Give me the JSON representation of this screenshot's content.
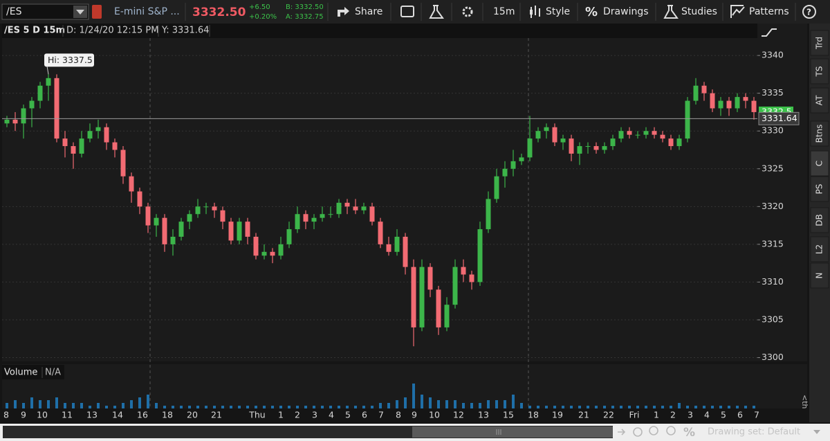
{
  "toolbar": {
    "symbol": "/ES",
    "description": "E-mini S&P ...",
    "last": "3332.50",
    "change": "+6.50",
    "change_pct": "+0.20%",
    "bid": "B: 3332.50",
    "ask": "A: 3332.75",
    "buttons": {
      "share": "Share",
      "interval": "15m",
      "style": "Style",
      "drawings": "Drawings",
      "studies": "Studies",
      "patterns": "Patterns"
    }
  },
  "header": {
    "symbol_label": "/ES 5 D 15m",
    "date": "D: 1/24/20 12:15 PM",
    "y": "Y: 3331.64"
  },
  "chart_data": {
    "type": "candlestick",
    "up_color": "#3cb54a",
    "down_color": "#f26b73",
    "ylim": [
      3299.5,
      3342.3
    ],
    "yticks": [
      3300,
      3305,
      3310,
      3315,
      3320,
      3325,
      3330,
      3335,
      3340
    ],
    "grid": true,
    "hi_label": "Hi: 3337.5",
    "crosshair": 3331.64,
    "last_price": 3332.5,
    "x_labels": [
      "8",
      "9",
      "10",
      "11",
      "13",
      "14",
      "16",
      "18",
      "20",
      "21",
      "Thu",
      "1",
      "2",
      "3",
      "4",
      "5",
      "6",
      "7",
      "8",
      "9",
      "10",
      "12",
      "13",
      "15",
      "18",
      "19",
      "21",
      "22",
      "Fri",
      "1",
      "2",
      "3",
      "4",
      "5",
      "6",
      "7"
    ],
    "candles": [
      [
        3331,
        3332,
        3330.5,
        3331.5
      ],
      [
        3331.5,
        3332.5,
        3330,
        3331
      ],
      [
        3331,
        3333.5,
        3329,
        3333
      ],
      [
        3333,
        3334.5,
        3330.5,
        3334
      ],
      [
        3334,
        3336.5,
        3333,
        3336
      ],
      [
        3336,
        3337.5,
        3334,
        3337
      ],
      [
        3337,
        3337.5,
        3328.5,
        3329
      ],
      [
        3329,
        3330,
        3326.5,
        3328
      ],
      [
        3328,
        3328.5,
        3325,
        3327
      ],
      [
        3327,
        3330,
        3326.5,
        3329
      ],
      [
        3329,
        3331,
        3328.5,
        3330
      ],
      [
        3330,
        3331.5,
        3329,
        3330.5
      ],
      [
        3330.5,
        3331,
        3327.5,
        3328.5
      ],
      [
        3328.5,
        3329,
        3326.5,
        3327.5
      ],
      [
        3327.5,
        3328,
        3323,
        3324
      ],
      [
        3324,
        3324.5,
        3320.5,
        3322
      ],
      [
        3322,
        3322.5,
        3319,
        3320
      ],
      [
        3320,
        3320.5,
        3316.5,
        3317.5
      ],
      [
        3317.5,
        3319,
        3316,
        3318.5
      ],
      [
        3318.5,
        3319,
        3314,
        3315
      ],
      [
        3315,
        3317,
        3313.5,
        3316
      ],
      [
        3316,
        3318.5,
        3315.5,
        3318
      ],
      [
        3318,
        3319.5,
        3317,
        3319
      ],
      [
        3319,
        3321,
        3318.5,
        3320
      ],
      [
        3320,
        3320.5,
        3319,
        3320
      ],
      [
        3320,
        3320.5,
        3318.5,
        3319.5
      ],
      [
        3319.5,
        3320,
        3317,
        3318
      ],
      [
        3318,
        3318.5,
        3315,
        3315.5
      ],
      [
        3315.5,
        3318.5,
        3315,
        3318
      ],
      [
        3318,
        3318.5,
        3315,
        3316
      ],
      [
        3316,
        3316.5,
        3313,
        3313.5
      ],
      [
        3313.5,
        3315,
        3313,
        3314
      ],
      [
        3314,
        3314.5,
        3312.5,
        3313.5
      ],
      [
        3313.5,
        3316,
        3313,
        3315
      ],
      [
        3315,
        3318,
        3314.5,
        3317
      ],
      [
        3317,
        3320,
        3316.5,
        3319
      ],
      [
        3319,
        3319.5,
        3317,
        3318
      ],
      [
        3318,
        3319,
        3317,
        3318.5
      ],
      [
        3318.5,
        3320,
        3318,
        3319
      ],
      [
        3319,
        3320,
        3318.5,
        3319
      ],
      [
        3319,
        3321,
        3318.5,
        3320.5
      ],
      [
        3320.5,
        3321,
        3319,
        3320
      ],
      [
        3320,
        3321,
        3319,
        3319.5
      ],
      [
        3319.5,
        3320.5,
        3319,
        3320
      ],
      [
        3320,
        3320.5,
        3317.5,
        3318
      ],
      [
        3318,
        3318.5,
        3314.5,
        3315
      ],
      [
        3315,
        3316,
        3313.5,
        3314
      ],
      [
        3314,
        3317,
        3313.5,
        3316
      ],
      [
        3316,
        3316.5,
        3311,
        3312
      ],
      [
        3312,
        3313,
        3301.5,
        3304
      ],
      [
        3304,
        3313,
        3303.5,
        3312
      ],
      [
        3312,
        3312.5,
        3308,
        3309
      ],
      [
        3309,
        3309.5,
        3303,
        3304
      ],
      [
        3304,
        3308,
        3303.5,
        3307
      ],
      [
        3307,
        3313,
        3306.5,
        3312
      ],
      [
        3312,
        3313,
        3310,
        3311
      ],
      [
        3311,
        3311.5,
        3309,
        3310
      ],
      [
        3310,
        3318,
        3309.5,
        3317
      ],
      [
        3317,
        3322,
        3316.5,
        3321
      ],
      [
        3321,
        3325,
        3320.5,
        3324
      ],
      [
        3324,
        3326,
        3322.5,
        3325
      ],
      [
        3325,
        3327.5,
        3324,
        3326
      ],
      [
        3326,
        3327,
        3325.5,
        3326.5
      ],
      [
        3326.5,
        3332,
        3326,
        3329
      ],
      [
        3329,
        3330.5,
        3328.5,
        3330
      ],
      [
        3330,
        3331,
        3329,
        3330.5
      ],
      [
        3330.5,
        3331,
        3328,
        3328.5
      ],
      [
        3328.5,
        3329.5,
        3327.5,
        3329
      ],
      [
        3329,
        3329.5,
        3326,
        3327
      ],
      [
        3327,
        3328.5,
        3325.5,
        3328
      ],
      [
        3328,
        3328.5,
        3327,
        3328
      ],
      [
        3328,
        3328.5,
        3327,
        3327.5
      ],
      [
        3327.5,
        3328.5,
        3327,
        3328
      ],
      [
        3328,
        3329.5,
        3327.5,
        3329
      ],
      [
        3329,
        3330.5,
        3328.5,
        3330
      ],
      [
        3330,
        3330.5,
        3329,
        3329.5
      ],
      [
        3329.5,
        3330,
        3329,
        3329.5
      ],
      [
        3329.5,
        3330.5,
        3329,
        3330
      ],
      [
        3330,
        3330.5,
        3329,
        3329.5
      ],
      [
        3329.5,
        3330,
        3328.5,
        3329
      ],
      [
        3329,
        3329.5,
        3327.5,
        3328
      ],
      [
        3328,
        3329.5,
        3327.5,
        3329
      ],
      [
        3329,
        3334.5,
        3328.5,
        3334
      ],
      [
        3334,
        3337,
        3333.5,
        3336
      ],
      [
        3336,
        3336.5,
        3334,
        3335
      ],
      [
        3335,
        3335.5,
        3332.5,
        3333
      ],
      [
        3333,
        3334.5,
        3332,
        3334
      ],
      [
        3334,
        3334.5,
        3332,
        3333
      ],
      [
        3333,
        3335,
        3332.5,
        3334.5
      ],
      [
        3334.5,
        3335,
        3333,
        3334
      ],
      [
        3334,
        3334.5,
        3331.5,
        3332.5
      ]
    ],
    "volume_title": "Volume",
    "volume_value": "N/A",
    "volume_color": "#1f6fa8",
    "volume_ylim": [
      0,
      10
    ],
    "volume": [
      2,
      3,
      2,
      4,
      3,
      3,
      4,
      2,
      2,
      2,
      1,
      2,
      1,
      1,
      2,
      3,
      4,
      5,
      2,
      1,
      1,
      1,
      1,
      1,
      1,
      1,
      1,
      1,
      1,
      1,
      1,
      1,
      1,
      1,
      1,
      1,
      1,
      1,
      1,
      1,
      1,
      1,
      1,
      1,
      1,
      2,
      2,
      3,
      4,
      9,
      5,
      4,
      3,
      3,
      3,
      2,
      2,
      2,
      3,
      3,
      3,
      5,
      2,
      1,
      1,
      1,
      1,
      1,
      1,
      1,
      1,
      1,
      1,
      1,
      1,
      1,
      1,
      1,
      1,
      1,
      1,
      2,
      1,
      1,
      1,
      1,
      1,
      1,
      1,
      1,
      1
    ]
  },
  "sidebar": {
    "tabs": [
      "Trd",
      "TS",
      "AT",
      "Btns",
      "C",
      "PS",
      "DB",
      "L2",
      "N"
    ],
    "volume_side": "<th..."
  },
  "footer": {
    "drawing_set": "Drawing set: Default"
  }
}
